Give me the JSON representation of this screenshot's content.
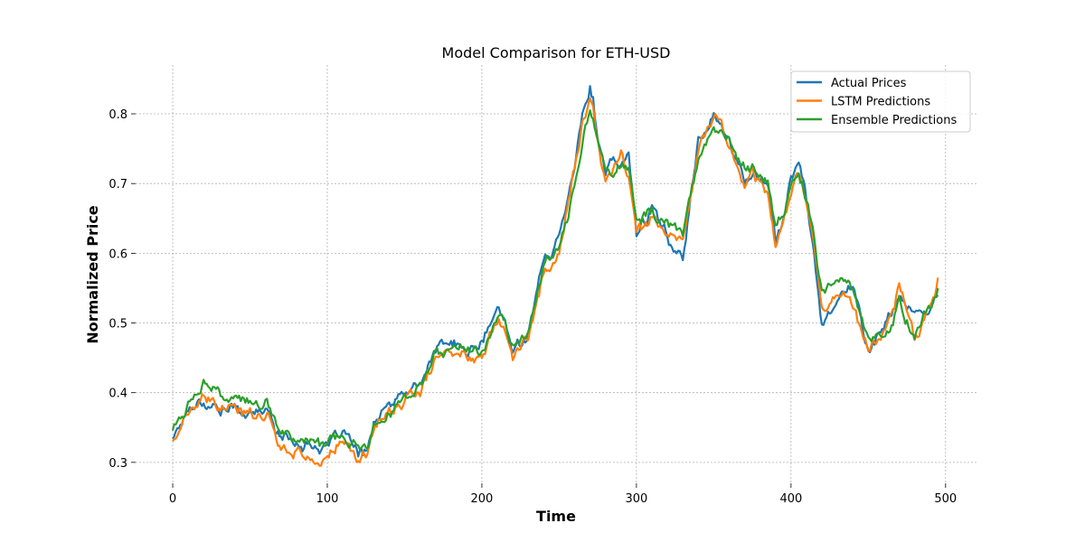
{
  "chart_data": {
    "type": "line",
    "title": "Model Comparison for ETH-USD",
    "xlabel": "Time",
    "ylabel": "Normalized Price",
    "xlim": [
      -24,
      520
    ],
    "ylim": [
      0.27,
      0.87
    ],
    "xticks": [
      0,
      100,
      200,
      300,
      400,
      500
    ],
    "yticks": [
      0.3,
      0.4,
      0.5,
      0.6,
      0.7,
      0.8
    ],
    "grid": true,
    "legend_position": "top-right",
    "anchors_x": [
      0,
      10,
      20,
      30,
      40,
      50,
      60,
      65,
      70,
      80,
      90,
      100,
      105,
      110,
      115,
      120,
      125,
      130,
      140,
      150,
      160,
      170,
      180,
      190,
      200,
      210,
      215,
      220,
      230,
      240,
      250,
      255,
      260,
      265,
      270,
      272,
      275,
      280,
      285,
      290,
      295,
      300,
      310,
      320,
      330,
      340,
      345,
      350,
      355,
      360,
      365,
      370,
      375,
      380,
      385,
      390,
      395,
      400,
      405,
      410,
      415,
      420,
      430,
      440,
      450,
      460,
      470,
      480,
      490,
      495
    ],
    "series": [
      {
        "name": "Actual Prices",
        "color": "#1f77b4",
        "values": [
          0.335,
          0.38,
          0.39,
          0.38,
          0.375,
          0.372,
          0.375,
          0.36,
          0.34,
          0.33,
          0.325,
          0.32,
          0.33,
          0.34,
          0.33,
          0.31,
          0.315,
          0.36,
          0.38,
          0.4,
          0.41,
          0.46,
          0.47,
          0.46,
          0.47,
          0.52,
          0.5,
          0.46,
          0.49,
          0.59,
          0.62,
          0.68,
          0.73,
          0.8,
          0.84,
          0.82,
          0.76,
          0.71,
          0.73,
          0.72,
          0.74,
          0.63,
          0.66,
          0.62,
          0.6,
          0.76,
          0.78,
          0.8,
          0.78,
          0.76,
          0.73,
          0.7,
          0.72,
          0.71,
          0.7,
          0.62,
          0.65,
          0.7,
          0.73,
          0.68,
          0.6,
          0.5,
          0.54,
          0.55,
          0.46,
          0.49,
          0.54,
          0.5,
          0.52,
          0.54
        ]
      },
      {
        "name": "LSTM Predictions",
        "color": "#ff7f0e",
        "values": [
          0.33,
          0.37,
          0.39,
          0.38,
          0.37,
          0.37,
          0.37,
          0.35,
          0.32,
          0.32,
          0.3,
          0.31,
          0.32,
          0.33,
          0.31,
          0.3,
          0.31,
          0.35,
          0.37,
          0.39,
          0.4,
          0.45,
          0.46,
          0.45,
          0.46,
          0.51,
          0.5,
          0.45,
          0.48,
          0.57,
          0.6,
          0.66,
          0.72,
          0.79,
          0.82,
          0.81,
          0.76,
          0.7,
          0.72,
          0.74,
          0.71,
          0.64,
          0.65,
          0.63,
          0.61,
          0.74,
          0.77,
          0.8,
          0.79,
          0.75,
          0.73,
          0.7,
          0.72,
          0.7,
          0.69,
          0.62,
          0.65,
          0.69,
          0.72,
          0.67,
          0.61,
          0.52,
          0.55,
          0.53,
          0.47,
          0.48,
          0.55,
          0.48,
          0.53,
          0.565
        ]
      },
      {
        "name": "Ensemble Predictions",
        "color": "#2ca02c",
        "values": [
          0.35,
          0.38,
          0.415,
          0.395,
          0.39,
          0.385,
          0.378,
          0.365,
          0.35,
          0.335,
          0.33,
          0.325,
          0.33,
          0.335,
          0.325,
          0.315,
          0.32,
          0.355,
          0.375,
          0.395,
          0.405,
          0.45,
          0.465,
          0.46,
          0.47,
          0.505,
          0.5,
          0.47,
          0.49,
          0.58,
          0.62,
          0.65,
          0.7,
          0.76,
          0.81,
          0.8,
          0.77,
          0.72,
          0.72,
          0.73,
          0.72,
          0.64,
          0.66,
          0.64,
          0.63,
          0.73,
          0.76,
          0.78,
          0.77,
          0.76,
          0.74,
          0.72,
          0.72,
          0.71,
          0.7,
          0.64,
          0.65,
          0.7,
          0.71,
          0.68,
          0.62,
          0.54,
          0.56,
          0.55,
          0.47,
          0.48,
          0.53,
          0.49,
          0.52,
          0.55
        ]
      }
    ]
  }
}
